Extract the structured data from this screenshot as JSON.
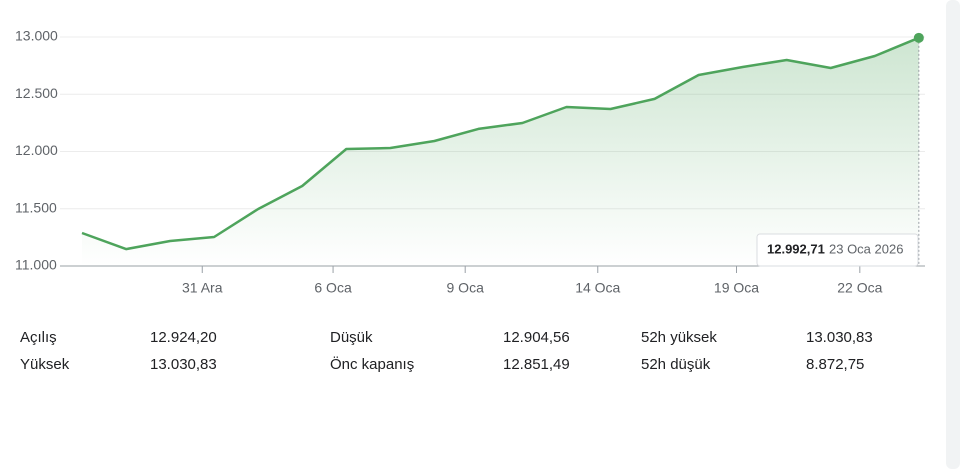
{
  "chart_data": {
    "type": "line",
    "x": [
      0,
      1,
      2,
      3,
      4,
      5,
      6,
      7,
      8,
      9,
      10,
      11,
      12,
      13,
      14,
      15,
      16,
      17,
      18,
      19
    ],
    "values": [
      11288,
      11148,
      11218,
      11253,
      11498,
      11699,
      12022,
      12031,
      12092,
      12197,
      12249,
      12389,
      12371,
      12459,
      12668,
      12738,
      12799,
      12729,
      12834,
      12992.71
    ],
    "color": "#4ea45c",
    "xlim": [
      -0.5,
      19.14
    ],
    "xticks": [
      {
        "value": 2.73,
        "label": "31 Ara"
      },
      {
        "value": 5.7,
        "label": "6 Oca"
      },
      {
        "value": 8.7,
        "label": "9 Oca"
      },
      {
        "value": 11.71,
        "label": "14 Oca"
      },
      {
        "value": 14.86,
        "label": "19 Oca"
      },
      {
        "value": 17.66,
        "label": "22 Oca"
      }
    ],
    "ylim": [
      11000,
      13000
    ],
    "yticks": [
      {
        "value": 11000,
        "label": "11.000"
      },
      {
        "value": 11500,
        "label": "11.500"
      },
      {
        "value": 12000,
        "label": "12.000"
      },
      {
        "value": 12500,
        "label": "12.500"
      },
      {
        "value": 13000,
        "label": "13.000"
      }
    ],
    "grid": true,
    "tooltip": {
      "value": 12992.71,
      "label": "12.992,71",
      "date": "23 Oca 2026"
    }
  },
  "stats": [
    [
      [
        "Açılış",
        "12.924,20"
      ],
      [
        "Yüksek",
        "13.030,83"
      ]
    ],
    [
      [
        "Düşük",
        "12.904,56"
      ],
      [
        "Önc kapanış",
        "12.851,49"
      ]
    ],
    [
      [
        "52h yüksek",
        "13.030,83"
      ],
      [
        "52h düşük",
        "8.872,75"
      ]
    ]
  ]
}
